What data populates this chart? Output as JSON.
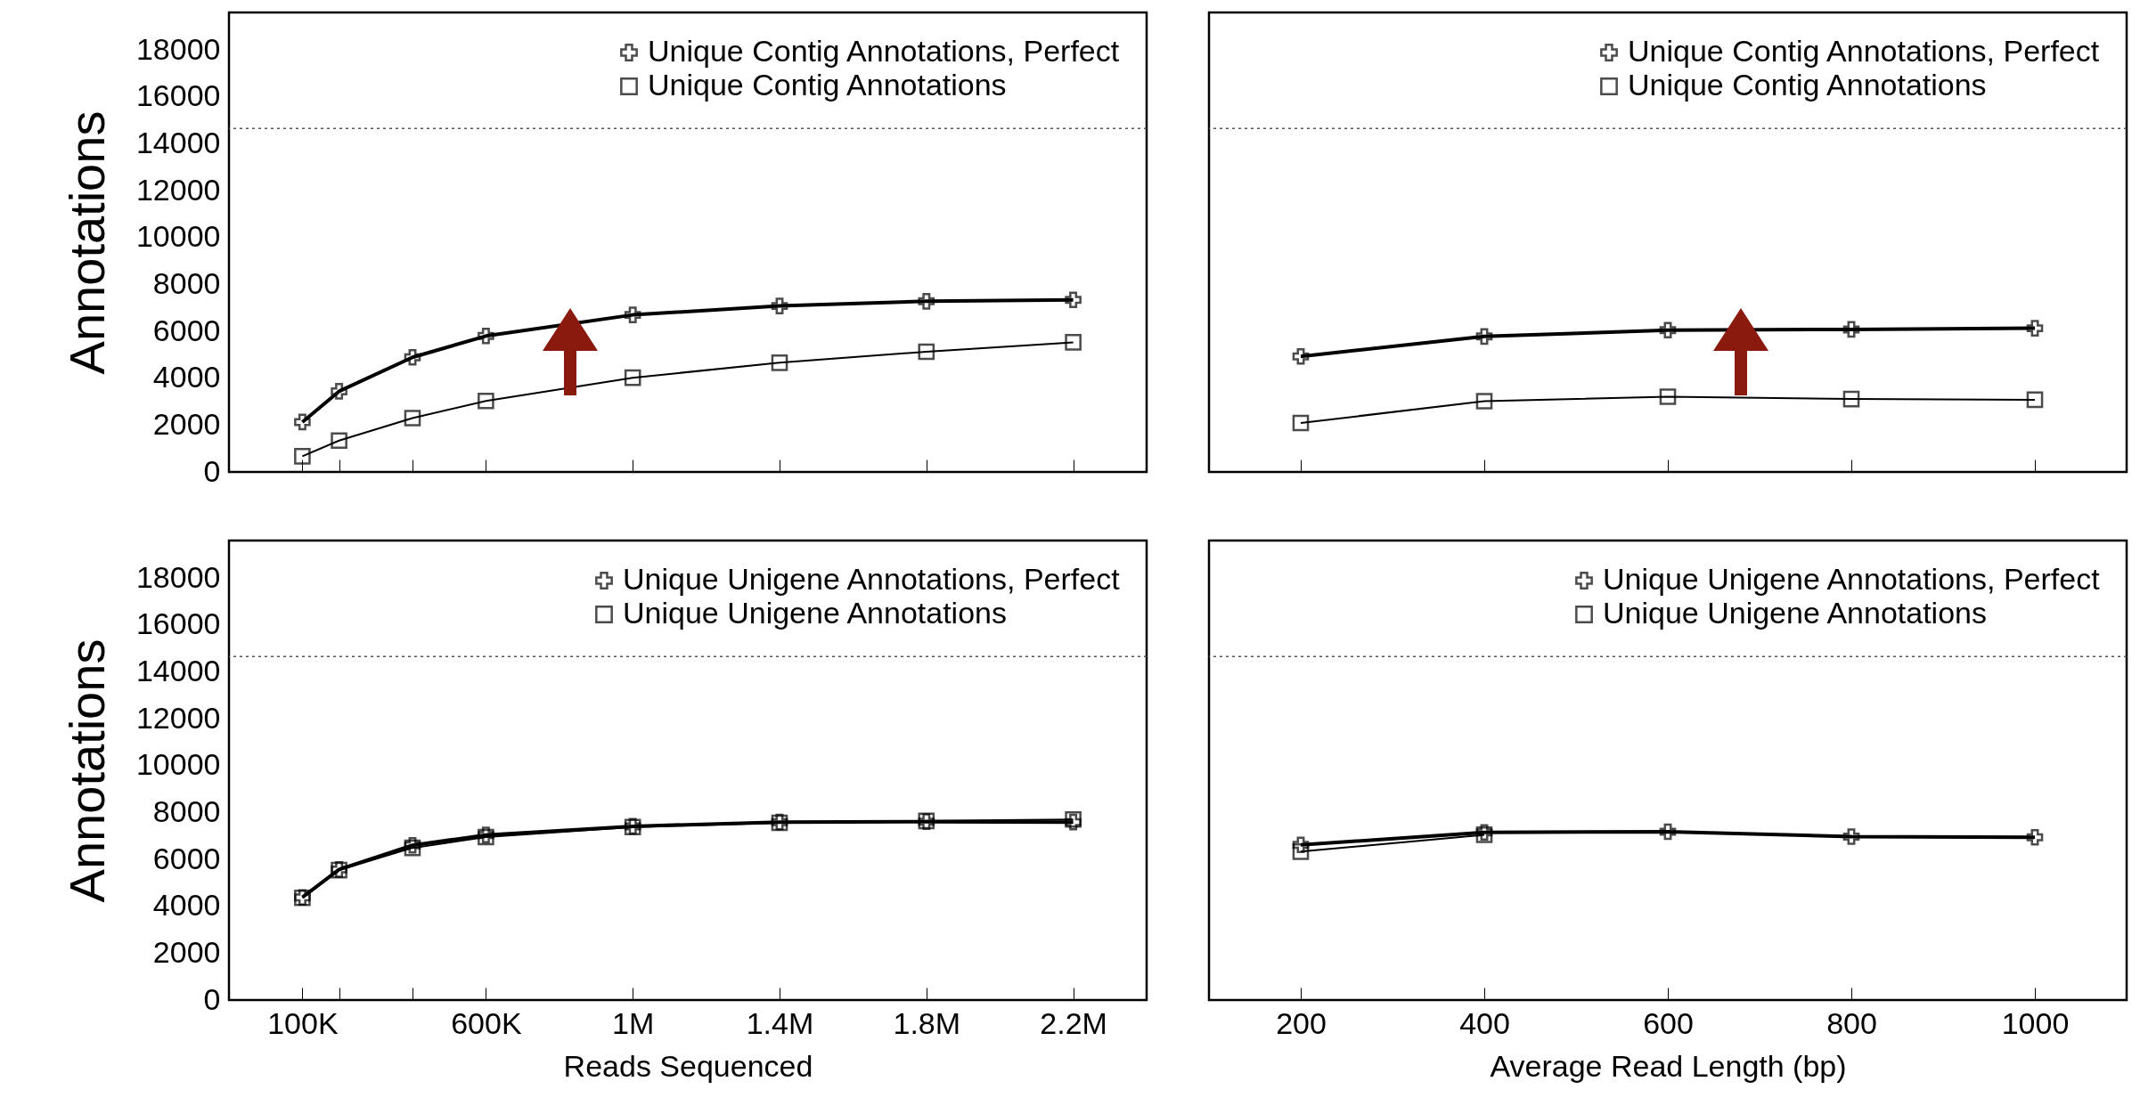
{
  "chart_data": [
    {
      "type": "line",
      "ylabel": "Annotations",
      "xlim": [
        -100000,
        2400000
      ],
      "xticks": [
        100000,
        200000,
        400000,
        600000,
        1000000,
        1400000,
        1800000,
        2200000
      ],
      "ylim": [
        0,
        19600
      ],
      "yticks": [
        0,
        2000,
        4000,
        6000,
        8000,
        10000,
        12000,
        14000,
        16000,
        18000
      ],
      "tick_labels": "y",
      "legend": "top right",
      "x": [
        100000,
        200000,
        400000,
        600000,
        1000000,
        1400000,
        1800000,
        2200000
      ],
      "series": [
        {
          "name": "Unique Contig Annotations, Perfect",
          "color": "#000000",
          "marker": "cross",
          "values": [
            2130,
            3440,
            4890,
            5800,
            6700,
            7080,
            7280,
            7340
          ]
        },
        {
          "name": "Unique Contig Annotations",
          "color": "#000000",
          "marker": "square",
          "values": [
            670,
            1340,
            2300,
            3030,
            4020,
            4660,
            5130,
            5530
          ]
        }
      ],
      "ref_lines": [
        {
          "axis": "y",
          "value": 14650,
          "color": "#555555",
          "line_style": "dotted"
        }
      ]
    },
    {
      "type": "line",
      "xlim": [
        100,
        1100
      ],
      "xticks": [
        200,
        400,
        600,
        800,
        1000
      ],
      "ylim": [
        0,
        19600
      ],
      "tick_labels": false,
      "legend": "top right",
      "x": [
        200,
        400,
        600,
        800,
        1000
      ],
      "series": [
        {
          "name": "Unique Contig Annotations, Perfect",
          "color": "#000000",
          "marker": "cross",
          "values": [
            4930,
            5780,
            6050,
            6080,
            6130
          ]
        },
        {
          "name": "Unique Contig Annotations",
          "color": "#000000",
          "marker": "square",
          "values": [
            2090,
            3020,
            3210,
            3110,
            3080
          ]
        }
      ],
      "ref_lines": [
        {
          "axis": "y",
          "value": 14650,
          "color": "#555555",
          "line_style": "dotted"
        }
      ]
    },
    {
      "type": "line",
      "xlabel": "Reads Sequenced",
      "ylabel": "Annotations",
      "xlim": [
        -100000,
        2400000
      ],
      "xticks": [
        {
          "value": 100000,
          "label": "100K"
        },
        {
          "value": 200000,
          "label": null
        },
        {
          "value": 400000,
          "label": null
        },
        {
          "value": 600000,
          "label": "600K"
        },
        {
          "value": 1000000,
          "label": "1M"
        },
        {
          "value": 1400000,
          "label": "1.4M"
        },
        {
          "value": 1800000,
          "label": "1.8M"
        },
        {
          "value": 2200000,
          "label": "2.2M"
        }
      ],
      "ylim": [
        0,
        19600
      ],
      "yticks": [
        0,
        2000,
        4000,
        6000,
        8000,
        10000,
        12000,
        14000,
        16000,
        18000
      ],
      "legend": "top right",
      "x": [
        100000,
        200000,
        400000,
        600000,
        1000000,
        1400000,
        1800000,
        2200000
      ],
      "series": [
        {
          "name": "Unique Unigene Annotations, Perfect",
          "color": "#000000",
          "marker": "cross",
          "values": [
            4380,
            5570,
            6600,
            7040,
            7410,
            7590,
            7610,
            7590
          ]
        },
        {
          "name": "Unique Unigene Annotations",
          "color": "#000000",
          "marker": "square",
          "values": [
            4360,
            5540,
            6490,
            6950,
            7380,
            7560,
            7640,
            7700
          ]
        }
      ],
      "ref_lines": [
        {
          "axis": "y",
          "value": 14650,
          "color": "#555555",
          "line_style": "dotted"
        }
      ]
    },
    {
      "type": "line",
      "xlabel": "Average Read Length (bp)",
      "xlim": [
        100,
        1100
      ],
      "xticks": [
        200,
        400,
        600,
        800,
        1000
      ],
      "ylim": [
        0,
        19600
      ],
      "tick_labels": "x",
      "legend": "top right",
      "x": [
        200,
        400,
        600,
        800,
        1000
      ],
      "series": [
        {
          "name": "Unique Unigene Annotations, Perfect",
          "color": "#000000",
          "marker": "cross",
          "values": [
            6620,
            7150,
            7180,
            6970,
            6940
          ]
        },
        {
          "name": "Unique Unigene Annotations",
          "color": "#000000",
          "marker": "square",
          "values": [
            6330,
            7050,
            null,
            null,
            null
          ]
        }
      ],
      "ref_lines": [
        {
          "axis": "y",
          "value": 14650,
          "color": "#555555",
          "line_style": "dotted"
        }
      ]
    }
  ]
}
